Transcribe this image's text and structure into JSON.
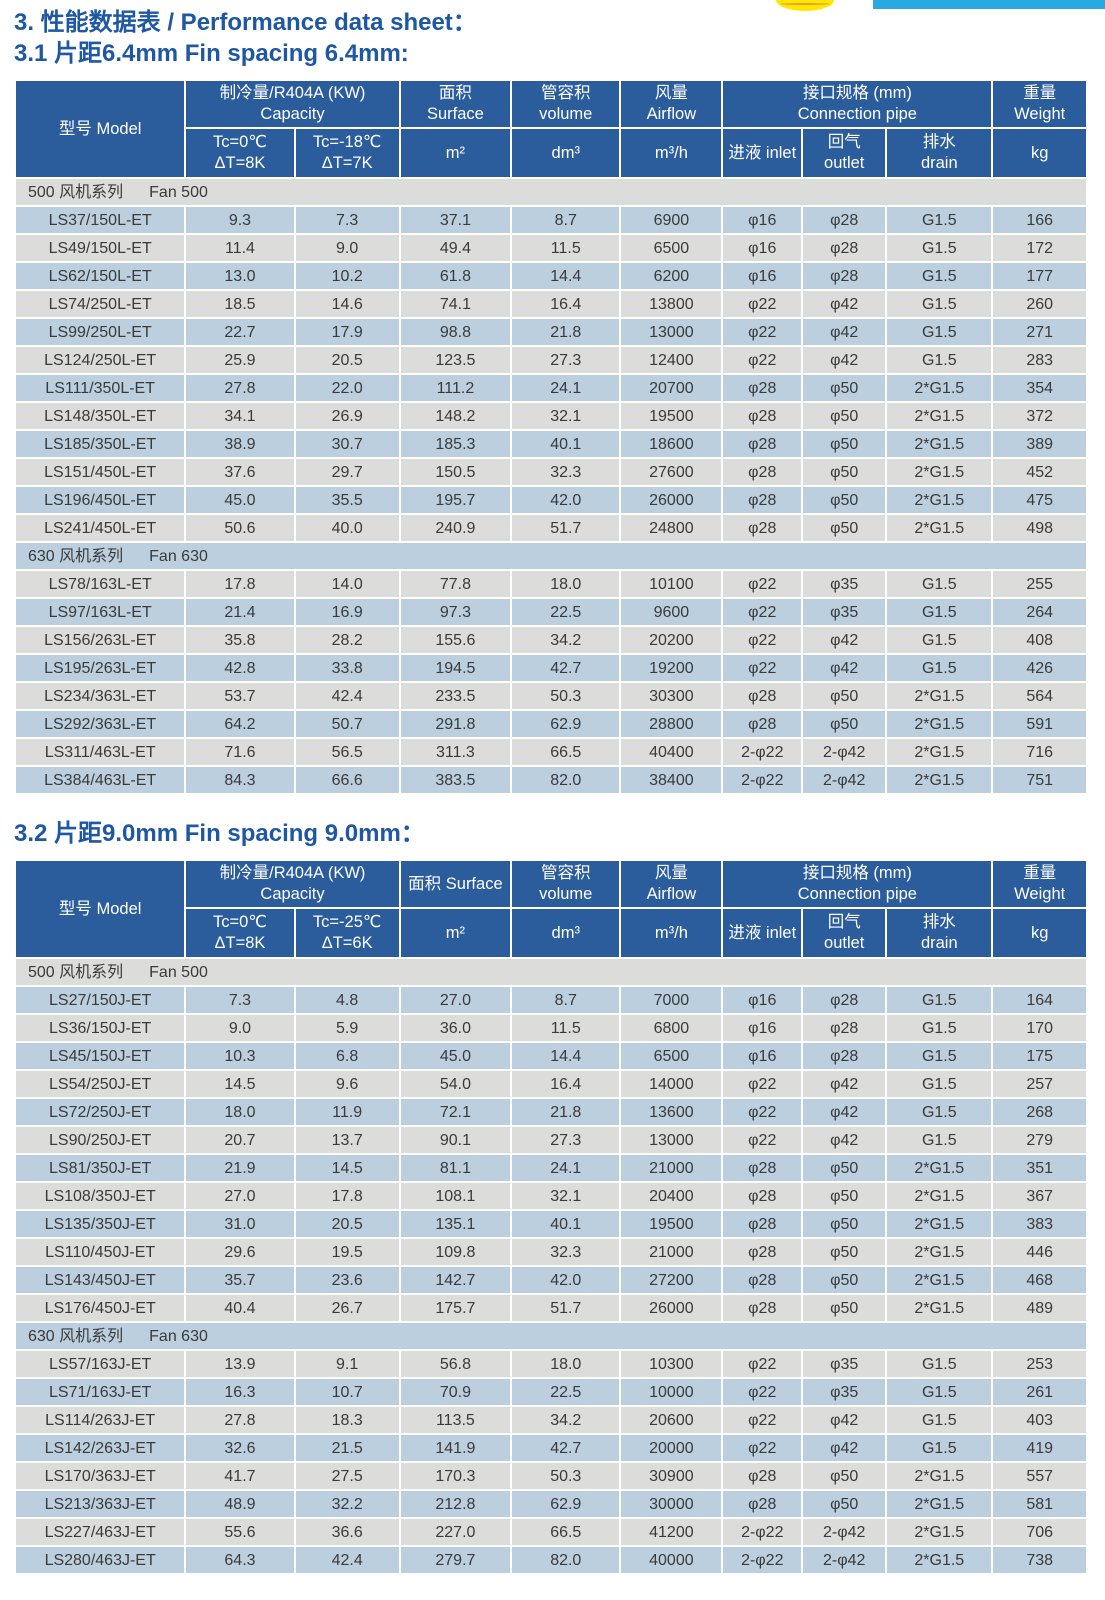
{
  "page": {
    "title": "3. 性能数据表 / Performance data sheet：",
    "colors": {
      "header_blue": "#2b5c9b",
      "row_blue": "#bccfdf",
      "row_gray": "#dcdcda",
      "body_text": "#3a3a3a",
      "title_blue": "#1e57a3",
      "accent_cyan": "#29a9e2",
      "logo_yellow": "#ffe603",
      "logo_line_orange": "#e0a23c"
    }
  },
  "tables": [
    {
      "subtitle": "3.1 片距6.4mm  Fin spacing 6.4mm:",
      "header": {
        "row1": [
          {
            "lines": [
              "型号 Model"
            ],
            "rowspan": 2
          },
          {
            "lines": [
              "制冷量/R404A (KW)",
              "Capacity"
            ],
            "colspan": 2
          },
          {
            "lines": [
              "面积",
              "Surface"
            ]
          },
          {
            "lines": [
              "管容积",
              "volume"
            ]
          },
          {
            "lines": [
              "风量",
              "Airflow"
            ]
          },
          {
            "lines": [
              "接口规格 (mm)",
              "Connection pipe"
            ],
            "colspan": 3
          },
          {
            "lines": [
              "重量",
              "Weight"
            ]
          }
        ],
        "row2": [
          {
            "lines": [
              "Tc=0℃",
              "ΔT=8K"
            ]
          },
          {
            "lines": [
              "Tc=-18℃",
              "ΔT=7K"
            ]
          },
          {
            "lines": [
              "m²"
            ]
          },
          {
            "lines": [
              "dm³"
            ]
          },
          {
            "lines": [
              "m³/h"
            ]
          },
          {
            "lines": [
              "进液 inlet"
            ]
          },
          {
            "lines": [
              "回气",
              "outlet"
            ]
          },
          {
            "lines": [
              "排水",
              "drain"
            ]
          },
          {
            "lines": [
              "kg"
            ]
          }
        ]
      },
      "sections": [
        {
          "label_cn": "500 风机系列",
          "label_en": "Fan 500",
          "rows": [
            [
              "LS37/150L-ET",
              "9.3",
              "7.3",
              "37.1",
              "8.7",
              "6900",
              "φ16",
              "φ28",
              "G1.5",
              "166"
            ],
            [
              "LS49/150L-ET",
              "11.4",
              "9.0",
              "49.4",
              "11.5",
              "6500",
              "φ16",
              "φ28",
              "G1.5",
              "172"
            ],
            [
              "LS62/150L-ET",
              "13.0",
              "10.2",
              "61.8",
              "14.4",
              "6200",
              "φ16",
              "φ28",
              "G1.5",
              "177"
            ],
            [
              "LS74/250L-ET",
              "18.5",
              "14.6",
              "74.1",
              "16.4",
              "13800",
              "φ22",
              "φ42",
              "G1.5",
              "260"
            ],
            [
              "LS99/250L-ET",
              "22.7",
              "17.9",
              "98.8",
              "21.8",
              "13000",
              "φ22",
              "φ42",
              "G1.5",
              "271"
            ],
            [
              "LS124/250L-ET",
              "25.9",
              "20.5",
              "123.5",
              "27.3",
              "12400",
              "φ22",
              "φ42",
              "G1.5",
              "283"
            ],
            [
              "LS111/350L-ET",
              "27.8",
              "22.0",
              "111.2",
              "24.1",
              "20700",
              "φ28",
              "φ50",
              "2*G1.5",
              "354"
            ],
            [
              "LS148/350L-ET",
              "34.1",
              "26.9",
              "148.2",
              "32.1",
              "19500",
              "φ28",
              "φ50",
              "2*G1.5",
              "372"
            ],
            [
              "LS185/350L-ET",
              "38.9",
              "30.7",
              "185.3",
              "40.1",
              "18600",
              "φ28",
              "φ50",
              "2*G1.5",
              "389"
            ],
            [
              "LS151/450L-ET",
              "37.6",
              "29.7",
              "150.5",
              "32.3",
              "27600",
              "φ28",
              "φ50",
              "2*G1.5",
              "452"
            ],
            [
              "LS196/450L-ET",
              "45.0",
              "35.5",
              "195.7",
              "42.0",
              "26000",
              "φ28",
              "φ50",
              "2*G1.5",
              "475"
            ],
            [
              "LS241/450L-ET",
              "50.6",
              "40.0",
              "240.9",
              "51.7",
              "24800",
              "φ28",
              "φ50",
              "2*G1.5",
              "498"
            ]
          ]
        },
        {
          "label_cn": "630 风机系列",
          "label_en": "Fan 630",
          "rows": [
            [
              "LS78/163L-ET",
              "17.8",
              "14.0",
              "77.8",
              "18.0",
              "10100",
              "φ22",
              "φ35",
              "G1.5",
              "255"
            ],
            [
              "LS97/163L-ET",
              "21.4",
              "16.9",
              "97.3",
              "22.5",
              "9600",
              "φ22",
              "φ35",
              "G1.5",
              "264"
            ],
            [
              "LS156/263L-ET",
              "35.8",
              "28.2",
              "155.6",
              "34.2",
              "20200",
              "φ22",
              "φ42",
              "G1.5",
              "408"
            ],
            [
              "LS195/263L-ET",
              "42.8",
              "33.8",
              "194.5",
              "42.7",
              "19200",
              "φ22",
              "φ42",
              "G1.5",
              "426"
            ],
            [
              "LS234/363L-ET",
              "53.7",
              "42.4",
              "233.5",
              "50.3",
              "30300",
              "φ28",
              "φ50",
              "2*G1.5",
              "564"
            ],
            [
              "LS292/363L-ET",
              "64.2",
              "50.7",
              "291.8",
              "62.9",
              "28800",
              "φ28",
              "φ50",
              "2*G1.5",
              "591"
            ],
            [
              "LS311/463L-ET",
              "71.6",
              "56.5",
              "311.3",
              "66.5",
              "40400",
              "2-φ22",
              "2-φ42",
              "2*G1.5",
              "716"
            ],
            [
              "LS384/463L-ET",
              "84.3",
              "66.6",
              "383.5",
              "82.0",
              "38400",
              "2-φ22",
              "2-φ42",
              "2*G1.5",
              "751"
            ]
          ]
        }
      ]
    },
    {
      "subtitle": "3.2 片距9.0mm  Fin spacing 9.0mm：",
      "header": {
        "row1": [
          {
            "lines": [
              "型号 Model"
            ],
            "rowspan": 2
          },
          {
            "lines": [
              "制冷量/R404A (KW)",
              "Capacity"
            ],
            "colspan": 2
          },
          {
            "lines": [
              "面积 Surface"
            ]
          },
          {
            "lines": [
              "管容积",
              "volume"
            ]
          },
          {
            "lines": [
              "风量",
              "Airflow"
            ]
          },
          {
            "lines": [
              "接口规格 (mm)",
              "Connection pipe"
            ],
            "colspan": 3
          },
          {
            "lines": [
              "重量",
              "Weight"
            ]
          }
        ],
        "row2": [
          {
            "lines": [
              "Tc=0℃",
              "ΔT=8K"
            ]
          },
          {
            "lines": [
              "Tc=-25℃",
              "ΔT=6K"
            ]
          },
          {
            "lines": [
              "m²"
            ]
          },
          {
            "lines": [
              "dm³"
            ]
          },
          {
            "lines": [
              "m³/h"
            ]
          },
          {
            "lines": [
              "进液 inlet"
            ]
          },
          {
            "lines": [
              "回气",
              "outlet"
            ]
          },
          {
            "lines": [
              "排水",
              "drain"
            ]
          },
          {
            "lines": [
              "kg"
            ]
          }
        ]
      },
      "sections": [
        {
          "label_cn": "500 风机系列",
          "label_en": "Fan 500",
          "rows": [
            [
              "LS27/150J-ET",
              "7.3",
              "4.8",
              "27.0",
              "8.7",
              "7000",
              "φ16",
              "φ28",
              "G1.5",
              "164"
            ],
            [
              "LS36/150J-ET",
              "9.0",
              "5.9",
              "36.0",
              "11.5",
              "6800",
              "φ16",
              "φ28",
              "G1.5",
              "170"
            ],
            [
              "LS45/150J-ET",
              "10.3",
              "6.8",
              "45.0",
              "14.4",
              "6500",
              "φ16",
              "φ28",
              "G1.5",
              "175"
            ],
            [
              "LS54/250J-ET",
              "14.5",
              "9.6",
              "54.0",
              "16.4",
              "14000",
              "φ22",
              "φ42",
              "G1.5",
              "257"
            ],
            [
              "LS72/250J-ET",
              "18.0",
              "11.9",
              "72.1",
              "21.8",
              "13600",
              "φ22",
              "φ42",
              "G1.5",
              "268"
            ],
            [
              "LS90/250J-ET",
              "20.7",
              "13.7",
              "90.1",
              "27.3",
              "13000",
              "φ22",
              "φ42",
              "G1.5",
              "279"
            ],
            [
              "LS81/350J-ET",
              "21.9",
              "14.5",
              "81.1",
              "24.1",
              "21000",
              "φ28",
              "φ50",
              "2*G1.5",
              "351"
            ],
            [
              "LS108/350J-ET",
              "27.0",
              "17.8",
              "108.1",
              "32.1",
              "20400",
              "φ28",
              "φ50",
              "2*G1.5",
              "367"
            ],
            [
              "LS135/350J-ET",
              "31.0",
              "20.5",
              "135.1",
              "40.1",
              "19500",
              "φ28",
              "φ50",
              "2*G1.5",
              "383"
            ],
            [
              "LS110/450J-ET",
              "29.6",
              "19.5",
              "109.8",
              "32.3",
              "21000",
              "φ28",
              "φ50",
              "2*G1.5",
              "446"
            ],
            [
              "LS143/450J-ET",
              "35.7",
              "23.6",
              "142.7",
              "42.0",
              "27200",
              "φ28",
              "φ50",
              "2*G1.5",
              "468"
            ],
            [
              "LS176/450J-ET",
              "40.4",
              "26.7",
              "175.7",
              "51.7",
              "26000",
              "φ28",
              "φ50",
              "2*G1.5",
              "489"
            ]
          ]
        },
        {
          "label_cn": "630 风机系列",
          "label_en": "Fan 630",
          "rows": [
            [
              "LS57/163J-ET",
              "13.9",
              "9.1",
              "56.8",
              "18.0",
              "10300",
              "φ22",
              "φ35",
              "G1.5",
              "253"
            ],
            [
              "LS71/163J-ET",
              "16.3",
              "10.7",
              "70.9",
              "22.5",
              "10000",
              "φ22",
              "φ35",
              "G1.5",
              "261"
            ],
            [
              "LS114/263J-ET",
              "27.8",
              "18.3",
              "113.5",
              "34.2",
              "20600",
              "φ22",
              "φ42",
              "G1.5",
              "403"
            ],
            [
              "LS142/263J-ET",
              "32.6",
              "21.5",
              "141.9",
              "42.7",
              "20000",
              "φ22",
              "φ42",
              "G1.5",
              "419"
            ],
            [
              "LS170/363J-ET",
              "41.7",
              "27.5",
              "170.3",
              "50.3",
              "30900",
              "φ28",
              "φ50",
              "2*G1.5",
              "557"
            ],
            [
              "LS213/363J-ET",
              "48.9",
              "32.2",
              "212.8",
              "62.9",
              "30000",
              "φ28",
              "φ50",
              "2*G1.5",
              "581"
            ],
            [
              "LS227/463J-ET",
              "55.6",
              "36.6",
              "227.0",
              "66.5",
              "41200",
              "2-φ22",
              "2-φ42",
              "2*G1.5",
              "706"
            ],
            [
              "LS280/463J-ET",
              "64.3",
              "42.4",
              "279.7",
              "82.0",
              "40000",
              "2-φ22",
              "2-φ42",
              "2*G1.5",
              "738"
            ]
          ]
        }
      ]
    }
  ],
  "column_widths_pct": [
    16.0,
    10.2,
    9.8,
    10.4,
    10.2,
    9.5,
    7.4,
    7.8,
    9.9,
    8.8
  ]
}
